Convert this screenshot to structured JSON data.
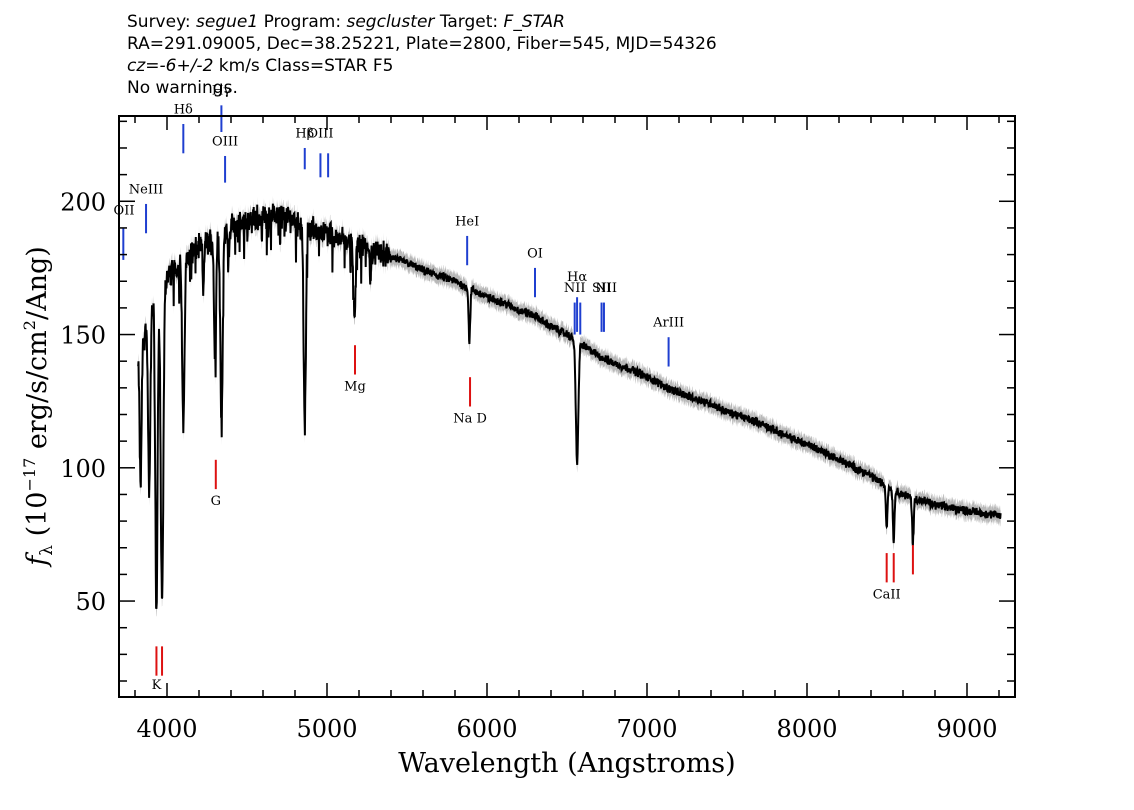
{
  "header": {
    "survey_label": "Survey:",
    "survey": "segue1",
    "program_label": "Program:",
    "program": "segcluster",
    "target_label": "Target:",
    "target": "F_STAR",
    "line2": "RA=291.09005, Dec=38.25221, Plate=2800, Fiber=545, MJD=54326",
    "cz_value": "cz=-6+/-2",
    "cz_rest": " km/s Class=STAR F5",
    "line4": "No warnings."
  },
  "chart_data": {
    "type": "line",
    "xlabel": "Wavelength (Angstroms)",
    "ylabel_main": "f",
    "ylabel_sub": "λ",
    "ylabel_rest": " (10",
    "ylabel_exp1": "−17",
    "ylabel_mid": " erg/s/cm",
    "ylabel_exp2": "2",
    "ylabel_end": "/Ang)",
    "xlim": [
      3700,
      9300
    ],
    "ylim": [
      14,
      232
    ],
    "xticks": [
      4000,
      5000,
      6000,
      7000,
      8000,
      9000
    ],
    "yticks": [
      50,
      100,
      150,
      200
    ],
    "colors": {
      "spectrum": "#000000",
      "error_band": "#b8b8b8",
      "emission": "#1f3fd0",
      "absorption": "#dd1111"
    },
    "continuum": [
      [
        3820,
        140
      ],
      [
        3900,
        160
      ],
      [
        4000,
        172
      ],
      [
        4100,
        178
      ],
      [
        4200,
        183
      ],
      [
        4300,
        186
      ],
      [
        4400,
        190
      ],
      [
        4500,
        193
      ],
      [
        4600,
        194
      ],
      [
        4700,
        195
      ],
      [
        4800,
        193
      ],
      [
        4900,
        190
      ],
      [
        5000,
        188
      ],
      [
        5100,
        186
      ],
      [
        5200,
        184
      ],
      [
        5300,
        181
      ],
      [
        5400,
        179
      ],
      [
        5500,
        177
      ],
      [
        5600,
        174
      ],
      [
        5700,
        172
      ],
      [
        5800,
        170
      ],
      [
        5900,
        167
      ],
      [
        6000,
        164
      ],
      [
        6100,
        162
      ],
      [
        6200,
        159
      ],
      [
        6300,
        157
      ],
      [
        6400,
        153
      ],
      [
        6500,
        150
      ],
      [
        6600,
        146
      ],
      [
        6700,
        142
      ],
      [
        6800,
        139
      ],
      [
        6900,
        137
      ],
      [
        7000,
        134
      ],
      [
        7100,
        131
      ],
      [
        7200,
        128
      ],
      [
        7300,
        126
      ],
      [
        7400,
        124
      ],
      [
        7500,
        121
      ],
      [
        7600,
        119
      ],
      [
        7700,
        117
      ],
      [
        7800,
        114
      ],
      [
        7900,
        111
      ],
      [
        8000,
        109
      ],
      [
        8100,
        106
      ],
      [
        8200,
        103
      ],
      [
        8300,
        100
      ],
      [
        8400,
        97
      ],
      [
        8500,
        93
      ],
      [
        8600,
        90
      ],
      [
        8700,
        88
      ],
      [
        8800,
        86
      ],
      [
        8900,
        85
      ],
      [
        9000,
        84
      ],
      [
        9100,
        83
      ],
      [
        9200,
        82
      ]
    ],
    "absorption_features": [
      {
        "x": 3835,
        "depth": 50,
        "w": 6
      },
      {
        "x": 3889,
        "depth": 65,
        "w": 7
      },
      {
        "x": 3934,
        "depth": 118,
        "w": 7
      },
      {
        "x": 3969,
        "depth": 120,
        "w": 8
      },
      {
        "x": 4102,
        "depth": 64,
        "w": 7
      },
      {
        "x": 4227,
        "depth": 18,
        "w": 4
      },
      {
        "x": 4300,
        "depth": 45,
        "w": 6
      },
      {
        "x": 4341,
        "depth": 72,
        "w": 7
      },
      {
        "x": 4383,
        "depth": 12,
        "w": 4
      },
      {
        "x": 4861,
        "depth": 76,
        "w": 7
      },
      {
        "x": 5172,
        "depth": 28,
        "w": 7
      },
      {
        "x": 5270,
        "depth": 10,
        "w": 4
      },
      {
        "x": 5890,
        "depth": 20,
        "w": 5
      },
      {
        "x": 6563,
        "depth": 45,
        "w": 8
      },
      {
        "x": 8498,
        "depth": 15,
        "w": 5
      },
      {
        "x": 8542,
        "depth": 19,
        "w": 5
      },
      {
        "x": 8662,
        "depth": 17,
        "w": 5
      }
    ],
    "emission_lines": [
      {
        "label": "OII",
        "x": 3727,
        "y0": 178,
        "y1": 190,
        "ly": 195
      },
      {
        "label": "NeIII",
        "x": 3869,
        "y0": 188,
        "y1": 199,
        "ly": 203
      },
      {
        "label": "Hδ",
        "x": 4102,
        "y0": 218,
        "y1": 229,
        "ly": 233
      },
      {
        "label": "Hγ",
        "x": 4340,
        "y0": 226,
        "y1": 236,
        "ly": 240
      },
      {
        "label": "OIII",
        "x": 4363,
        "y0": 207,
        "y1": 217,
        "ly": 221
      },
      {
        "label": "Hβ",
        "x": 4861,
        "y0": 212,
        "y1": 220,
        "ly": 224
      },
      {
        "label": "OIII",
        "x": 4959,
        "y0": 209,
        "y1": 218,
        "ly": 224
      },
      {
        "label": "OIII",
        "x": 5007,
        "y0": 209,
        "y1": 218,
        "ly": null
      },
      {
        "label": "HeI",
        "x": 5876,
        "y0": 176,
        "y1": 187,
        "ly": 191
      },
      {
        "label": "OI",
        "x": 6300,
        "y0": 164,
        "y1": 175,
        "ly": 179
      },
      {
        "label": "NII",
        "x": 6548,
        "y0": 150,
        "y1": 162,
        "ly": 166
      },
      {
        "label": "Hα",
        "x": 6563,
        "y0": 151,
        "y1": 164,
        "ly": 170
      },
      {
        "label": "NII",
        "x": 6583,
        "y0": 150,
        "y1": 162,
        "ly": null
      },
      {
        "label": "SII",
        "x": 6716,
        "y0": 151,
        "y1": 162,
        "ly": 166
      },
      {
        "label": "SII",
        "x": 6731,
        "y0": 151,
        "y1": 162,
        "ly": null
      },
      {
        "label": "ArIII",
        "x": 7135,
        "y0": 138,
        "y1": 149,
        "ly": 153
      }
    ],
    "extra_labels": [
      {
        "label": "NII",
        "x": 6745,
        "y": 166
      }
    ],
    "absorption_lines": [
      {
        "label": "K",
        "x": 3934,
        "y0": 22,
        "y1": 33,
        "ly": 17
      },
      {
        "label": "H",
        "x": 3969,
        "y0": 22,
        "y1": 33,
        "ly": null
      },
      {
        "label": "G",
        "x": 4305,
        "y0": 92,
        "y1": 103,
        "ly": 86
      },
      {
        "label": "Mg",
        "x": 5175,
        "y0": 135,
        "y1": 146,
        "ly": 129
      },
      {
        "label": "Na D",
        "x": 5894,
        "y0": 123,
        "y1": 134,
        "ly": 117
      },
      {
        "label": "CaII",
        "x": 8498,
        "y0": 57,
        "y1": 68,
        "ly": 51
      },
      {
        "label": "CaII",
        "x": 8542,
        "y0": 57,
        "y1": 68,
        "ly": null
      },
      {
        "label": "CaII",
        "x": 8662,
        "y0": 60,
        "y1": 71,
        "ly": null
      }
    ]
  }
}
